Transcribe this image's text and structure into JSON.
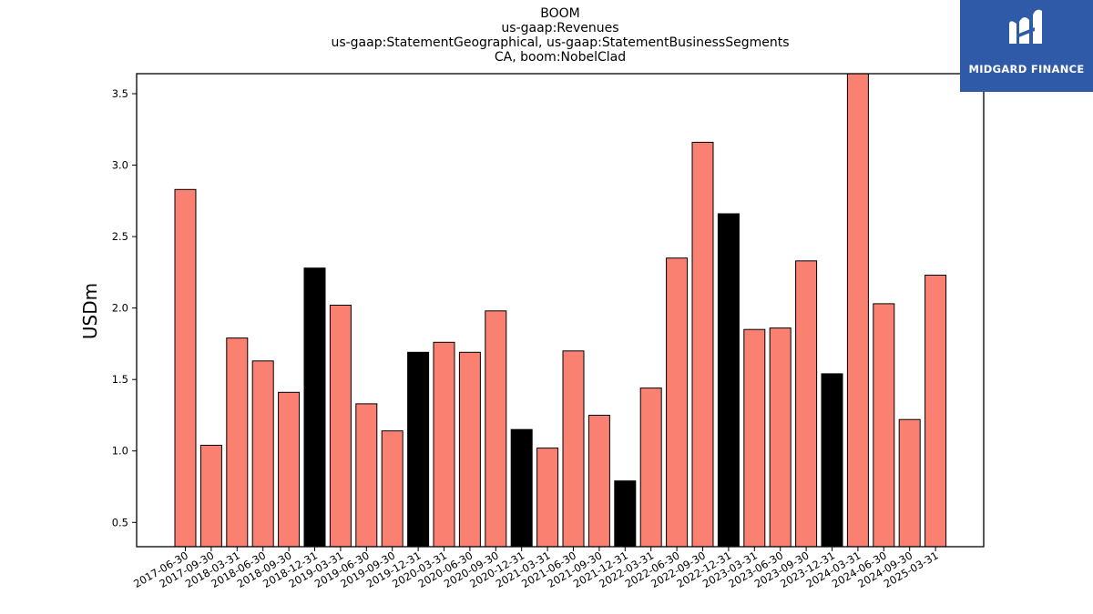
{
  "chart_data": {
    "type": "bar",
    "title_lines": [
      "BOOM",
      "us-gaap:Revenues",
      "us-gaap:StatementGeographical, us-gaap:StatementBusinessSegments",
      "CA, boom:NobelClad"
    ],
    "ylabel": "USDm",
    "xlabel": "",
    "ylim": [
      0.33,
      3.64
    ],
    "yticks": [
      0.5,
      1.0,
      1.5,
      2.0,
      2.5,
      3.0,
      3.5
    ],
    "ytick_labels": [
      "0.5",
      "1.0",
      "1.5",
      "2.0",
      "2.5",
      "3.0",
      "3.5"
    ],
    "categories": [
      "2017-06-30",
      "2017-09-30",
      "2018-03-31",
      "2018-06-30",
      "2018-09-30",
      "2018-12-31",
      "2019-03-31",
      "2019-06-30",
      "2019-09-30",
      "2019-12-31",
      "2020-03-31",
      "2020-06-30",
      "2020-09-30",
      "2020-12-31",
      "2021-03-31",
      "2021-06-30",
      "2021-09-30",
      "2021-12-31",
      "2022-03-31",
      "2022-06-30",
      "2022-09-30",
      "2022-12-31",
      "2023-03-31",
      "2023-06-30",
      "2023-09-30",
      "2023-12-31",
      "2024-03-31",
      "2024-06-30",
      "2024-09-30",
      "2025-03-31"
    ],
    "values": [
      2.83,
      1.04,
      1.79,
      1.63,
      1.41,
      2.28,
      2.02,
      1.33,
      1.14,
      1.69,
      1.76,
      1.69,
      1.98,
      1.15,
      1.02,
      1.7,
      1.25,
      0.79,
      1.44,
      2.35,
      3.16,
      2.66,
      1.85,
      1.86,
      2.33,
      1.54,
      3.65,
      2.03,
      1.22,
      2.23
    ],
    "highlight_categories": [
      "2018-12-31",
      "2019-12-31",
      "2020-12-31",
      "2021-12-31",
      "2022-12-31",
      "2023-12-31"
    ],
    "colors": {
      "bar": "#fa8072",
      "highlight": "#000000",
      "edge": "#000000"
    },
    "grid": false
  },
  "logo": {
    "text": "MIDGARD FINANCE",
    "background": "#2f5aa8",
    "icon": "midgard-m-icon"
  }
}
